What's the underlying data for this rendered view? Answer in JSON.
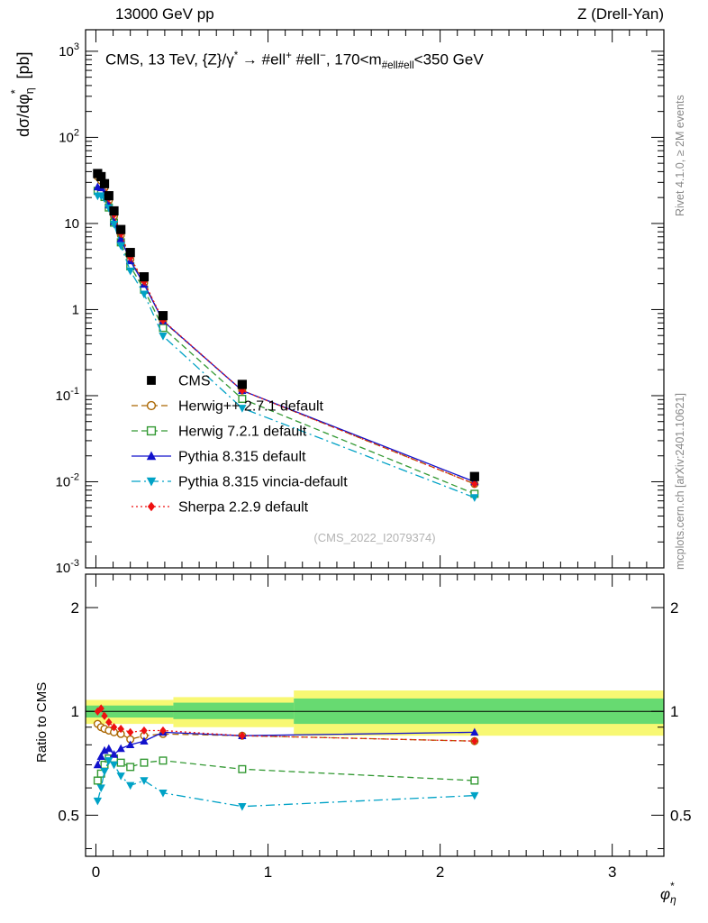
{
  "header": {
    "left": "13000 GeV pp",
    "right": "Z (Drell-Yan)"
  },
  "title": {
    "p1": "CMS, 13 TeV, {Z}/γ",
    "sup1": "*",
    "p2": " →  #ell",
    "sup2": "+",
    "p3": " #ell",
    "sup3": "−",
    "p4": ", 170<m",
    "sub4": "#ell#ell",
    "p5": "<350 GeV"
  },
  "watermark": "(CMS_2022_I2079374)",
  "side_notes": {
    "top_right": "Rivet 4.1.0, ≥ 2M events",
    "bottom_right": "mcplots.cern.ch [arXiv:2401.10621]"
  },
  "axes": {
    "y_label": {
      "p1": "dσ/dφ",
      "sup": "*",
      "sub": "η",
      "p2": " [pb]"
    },
    "x_label": {
      "p1": "φ",
      "sup": "*",
      "sub": "η"
    },
    "ratio_label": "Ratio to CMS"
  },
  "chart_data": {
    "type": "line",
    "subtype": "hep-data-vs-mc-comparison-with-ratio",
    "title": "CMS, 13 TeV, {Z}/γ* → #ell+ #ell−, 170<m_#ell#ell<350 GeV",
    "xlabel": "φ*_η",
    "ylabel": "dσ/dφ*_η [pb]",
    "ratio_ylabel": "Ratio to CMS",
    "x_scale": "linear",
    "y_scale": "log",
    "ratio_y_scale": "log",
    "grid": false,
    "legend_position": "inside-middle-left",
    "xlim": [
      -0.06,
      3.3
    ],
    "ylim_log": [
      -3,
      3.25
    ],
    "ratio_ylim": [
      0.38,
      2.5
    ],
    "x": [
      0.01,
      0.03,
      0.05,
      0.075,
      0.105,
      0.145,
      0.2,
      0.28,
      0.39,
      0.85,
      2.2
    ],
    "cms": {
      "id": "cms",
      "label": "CMS",
      "color": "#000000",
      "marker": "square-filled",
      "line": "none",
      "values": [
        38,
        35,
        29,
        21,
        14,
        8.5,
        4.6,
        2.4,
        0.85,
        0.135,
        0.0115
      ],
      "err": [
        0.03,
        0.03,
        0.03,
        0.03,
        0.03,
        0.035,
        0.04,
        0.04,
        0.045,
        0.06,
        0.1
      ]
    },
    "series": [
      {
        "id": "herwigpp",
        "label": "Herwig++ 2.7.1 default",
        "color": "#aa6600",
        "marker": "circle-open",
        "line": "dashed",
        "ratio": [
          0.92,
          0.9,
          0.89,
          0.88,
          0.87,
          0.86,
          0.83,
          0.85,
          0.86,
          0.85,
          0.82
        ]
      },
      {
        "id": "herwig7",
        "label": "Herwig 7.2.1 default",
        "color": "#339933",
        "marker": "square-open",
        "line": "dashed",
        "ratio": [
          0.63,
          0.66,
          0.7,
          0.73,
          0.73,
          0.71,
          0.69,
          0.71,
          0.72,
          0.68,
          0.63
        ]
      },
      {
        "id": "pythia",
        "label": "Pythia 8.315 default",
        "color": "#1212cc",
        "marker": "triangle-up-filled",
        "line": "solid",
        "ratio": [
          0.7,
          0.74,
          0.77,
          0.78,
          0.75,
          0.78,
          0.8,
          0.82,
          0.87,
          0.85,
          0.87
        ]
      },
      {
        "id": "vincia",
        "label": "Pythia 8.315 vincia-default",
        "color": "#00a2c6",
        "marker": "triangle-down-filled",
        "line": "dashdot",
        "ratio": [
          0.55,
          0.6,
          0.67,
          0.72,
          0.7,
          0.65,
          0.61,
          0.63,
          0.58,
          0.53,
          0.57
        ]
      },
      {
        "id": "sherpa",
        "label": "Sherpa 2.2.9 default",
        "color": "#ee1111",
        "marker": "diamond-filled",
        "line": "dotted",
        "ratio": [
          1.0,
          1.02,
          0.97,
          0.93,
          0.9,
          0.89,
          0.87,
          0.88,
          0.88,
          0.85,
          0.82
        ]
      }
    ],
    "band_colors": {
      "yellow": "#f8f873",
      "green": "#67da71"
    },
    "bands": {
      "yellow": [
        {
          "x0": -0.06,
          "x1": 0.45,
          "lo": 0.92,
          "hi": 1.08
        },
        {
          "x0": 0.45,
          "x1": 1.15,
          "lo": 0.9,
          "hi": 1.1
        },
        {
          "x0": 1.15,
          "x1": 3.3,
          "lo": 0.85,
          "hi": 1.15
        }
      ],
      "green": [
        {
          "x0": -0.06,
          "x1": 0.45,
          "lo": 0.96,
          "hi": 1.04
        },
        {
          "x0": 0.45,
          "x1": 1.15,
          "lo": 0.95,
          "hi": 1.06
        },
        {
          "x0": 1.15,
          "x1": 3.3,
          "lo": 0.92,
          "hi": 1.09
        }
      ]
    },
    "ticks": {
      "x": [
        {
          "v": 0,
          "label": "0"
        },
        {
          "v": 1,
          "label": "1"
        },
        {
          "v": 2,
          "label": "2"
        },
        {
          "v": 3,
          "label": "3"
        }
      ],
      "y_main": [
        {
          "v": 1000,
          "base": "10",
          "exp": "3"
        },
        {
          "v": 100,
          "base": "10",
          "exp": "2"
        },
        {
          "v": 10,
          "base": "10",
          "exp": ""
        },
        {
          "v": 1,
          "base": "1",
          "exp": ""
        },
        {
          "v": 0.1,
          "base": "10",
          "exp": "-1"
        },
        {
          "v": 0.01,
          "base": "10",
          "exp": "-2"
        },
        {
          "v": 0.001,
          "base": "10",
          "exp": "-3"
        }
      ],
      "y_ratio_major": [
        {
          "v": 2,
          "label": "2"
        },
        {
          "v": 1,
          "label": "1"
        },
        {
          "v": 0.5,
          "label": "0.5"
        }
      ],
      "y_ratio_minor": [
        0.4,
        0.6,
        0.7,
        0.8,
        0.9
      ]
    }
  }
}
